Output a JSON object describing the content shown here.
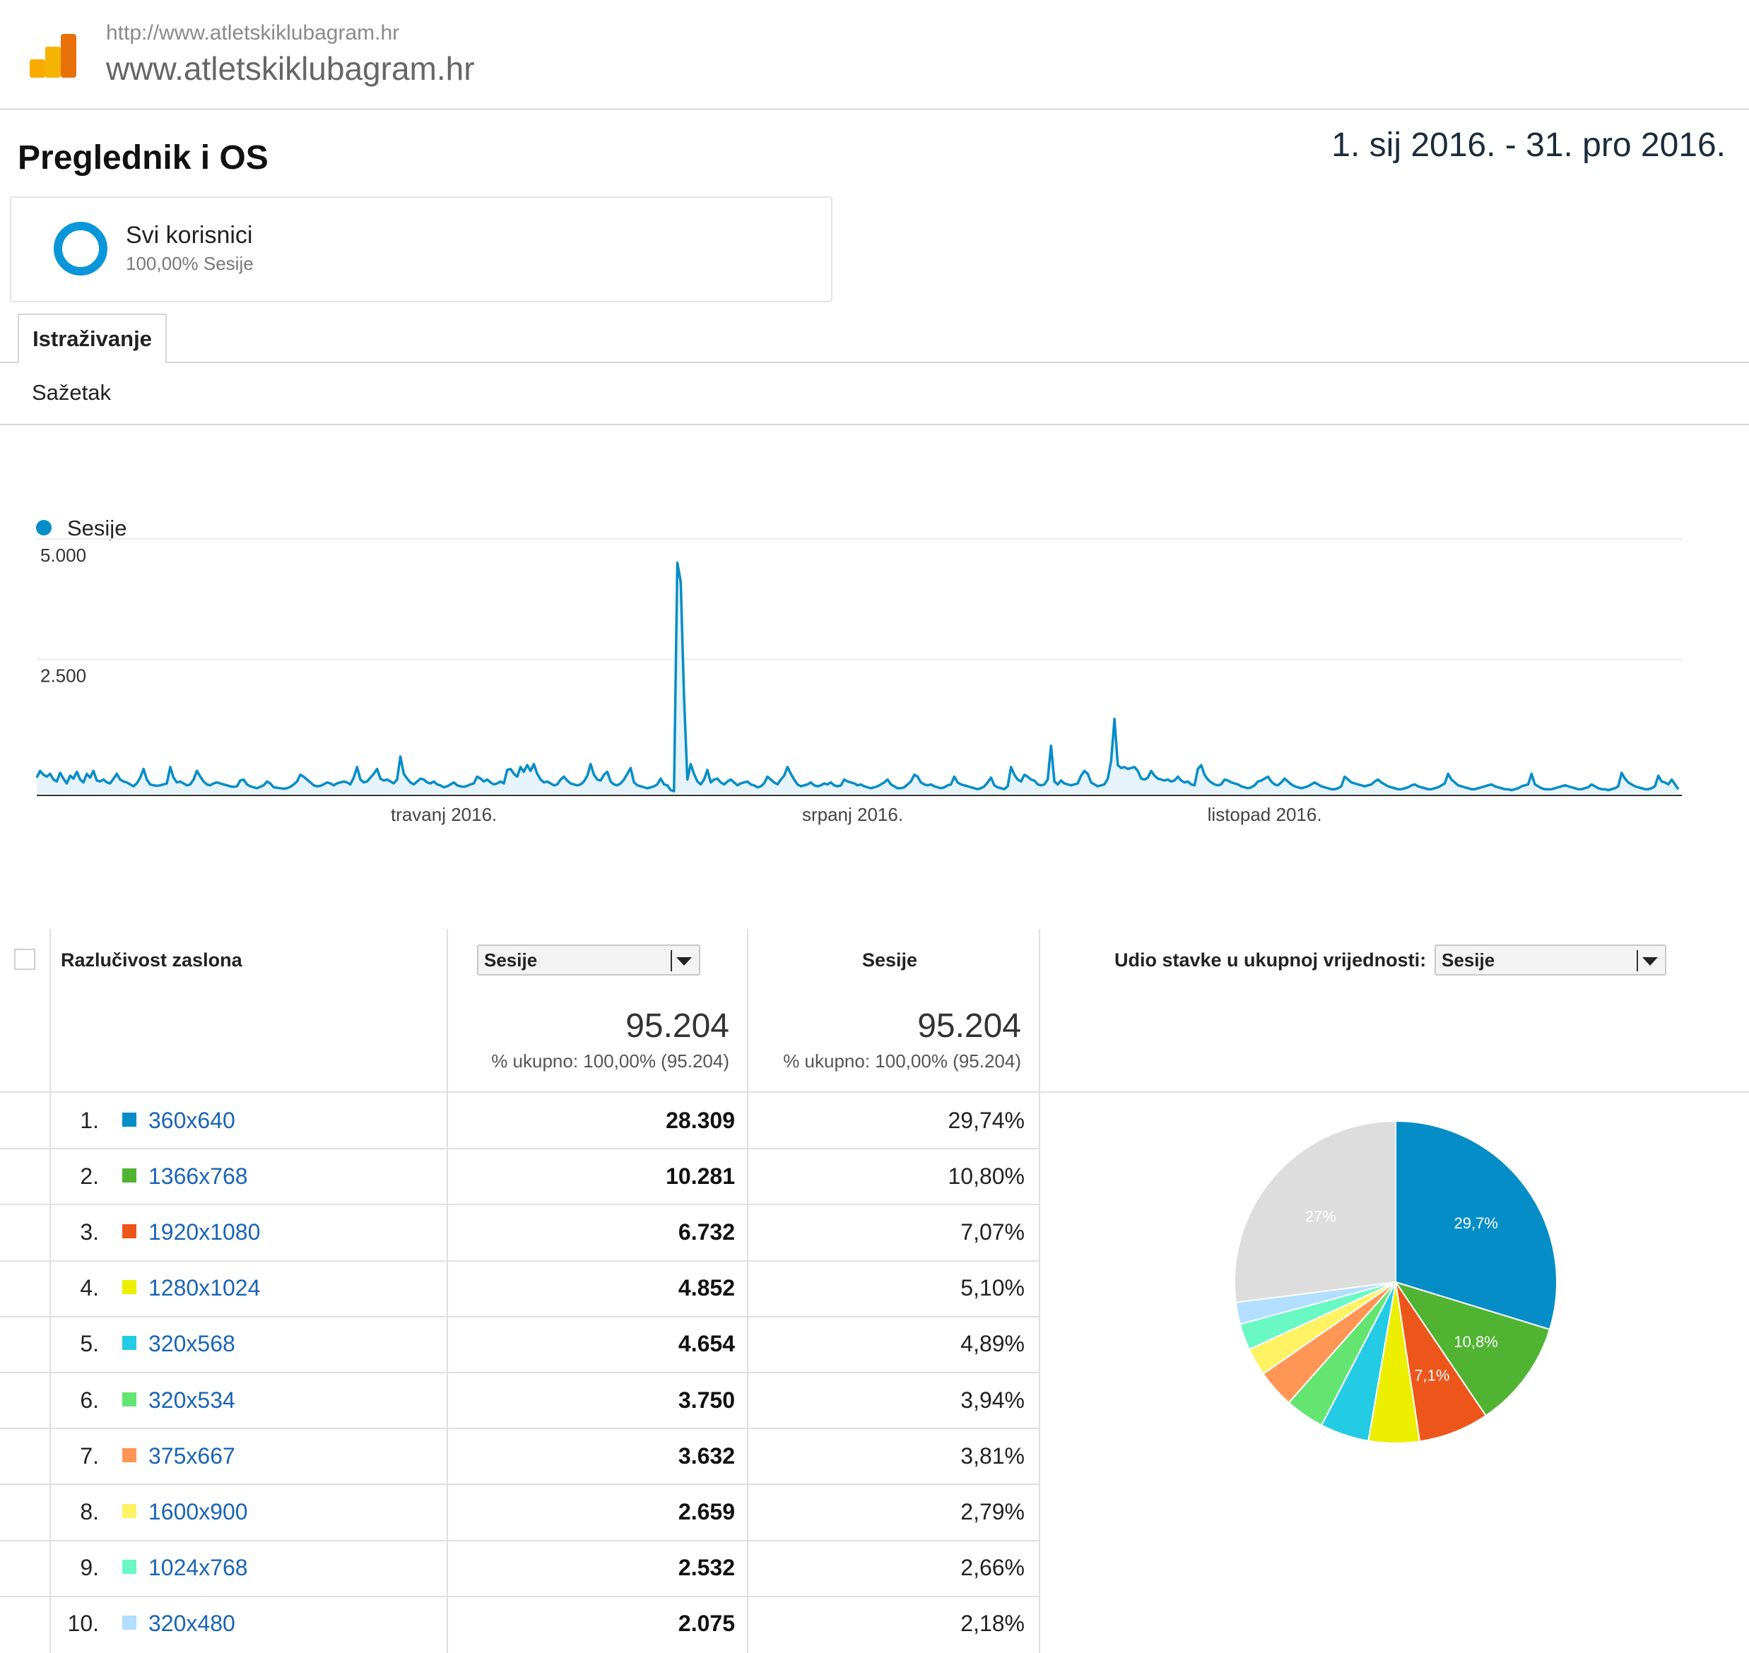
{
  "header": {
    "site_url": "http://www.atletskiklubagram.hr",
    "site_name": "www.atletskiklubagram.hr",
    "logo_icon": "analytics-bars-icon"
  },
  "report": {
    "title": "Preglednik i OS",
    "date_range": "1. sij 2016. - 31. pro 2016."
  },
  "segment": {
    "name": "Svi korisnici",
    "share": "100,00% Sesije",
    "ring_color": "#0a96d8"
  },
  "tabs": {
    "active": "Istraživanje",
    "sublink": "Sažetak"
  },
  "chart_data": {
    "type": "line",
    "legend": [
      "Sesije"
    ],
    "series": [
      {
        "name": "Sesije",
        "color": "#058dc7",
        "values": [
          340,
          480,
          400,
          360,
          420,
          300,
          260,
          440,
          320,
          220,
          380,
          320,
          460,
          300,
          240,
          420,
          340,
          480,
          280,
          260,
          300,
          240,
          220,
          320,
          420,
          300,
          260,
          240,
          200,
          160,
          220,
          340,
          520,
          300,
          200,
          180,
          170,
          180,
          200,
          220,
          560,
          340,
          240,
          260,
          220,
          180,
          200,
          300,
          480,
          360,
          260,
          200,
          180,
          220,
          240,
          220,
          200,
          180,
          160,
          150,
          160,
          280,
          300,
          200,
          160,
          140,
          120,
          150,
          180,
          260,
          220,
          140,
          130,
          120,
          110,
          120,
          150,
          200,
          260,
          400,
          360,
          300,
          240,
          180,
          160,
          170,
          200,
          240,
          220,
          180,
          220,
          240,
          260,
          240,
          200,
          340,
          560,
          300,
          240,
          260,
          340,
          420,
          520,
          320,
          280,
          300,
          260,
          220,
          300,
          780,
          420,
          320,
          240,
          200,
          260,
          320,
          300,
          240,
          220,
          260,
          200,
          180,
          140,
          160,
          200,
          240,
          180,
          160,
          150,
          170,
          200,
          220,
          360,
          320,
          260,
          300,
          240,
          200,
          220,
          260,
          220,
          500,
          520,
          420,
          360,
          560,
          460,
          600,
          480,
          620,
          420,
          300,
          240,
          260,
          220,
          180,
          200,
          300,
          360,
          280,
          220,
          200,
          180,
          200,
          260,
          380,
          620,
          400,
          300,
          280,
          400,
          460,
          260,
          200,
          180,
          220,
          300,
          420,
          540,
          240,
          180,
          160,
          140,
          120,
          140,
          160,
          200,
          320,
          200,
          180,
          80,
          60,
          4800,
          4400,
          2000,
          300,
          620,
          420,
          260,
          200,
          300,
          500,
          240,
          300,
          320,
          240,
          200,
          260,
          300,
          240,
          180,
          220,
          240,
          260,
          200,
          180,
          140,
          160,
          220,
          360,
          300,
          240,
          200,
          300,
          380,
          560,
          420,
          300,
          200,
          160,
          180,
          200,
          240,
          180,
          160,
          180,
          220,
          200,
          240,
          180,
          160,
          180,
          300,
          260,
          240,
          220,
          180,
          200,
          160,
          140,
          120,
          140,
          160,
          200,
          240,
          300,
          200,
          160,
          120,
          120,
          140,
          200,
          260,
          400,
          360,
          240,
          200,
          180,
          200,
          160,
          140,
          120,
          140,
          180,
          200,
          360,
          240,
          200,
          180,
          160,
          140,
          120,
          100,
          120,
          160,
          240,
          340,
          180,
          140,
          120,
          100,
          160,
          560,
          400,
          300,
          260,
          400,
          360,
          300,
          280,
          200,
          180,
          200,
          300,
          1000,
          260,
          200,
          280,
          220,
          200,
          180,
          200,
          220,
          380,
          480,
          420,
          240,
          200,
          160,
          180,
          200,
          320,
          680,
          1560,
          600,
          540,
          560,
          520,
          540,
          560,
          480,
          320,
          300,
          340,
          480,
          380,
          320,
          300,
          280,
          300,
          260,
          280,
          360,
          280,
          240,
          260,
          200,
          180,
          520,
          600,
          400,
          300,
          240,
          200,
          180,
          200,
          300,
          280,
          240,
          220,
          200,
          160,
          140,
          120,
          140,
          180,
          260,
          280,
          320,
          360,
          260,
          200,
          180,
          240,
          320,
          260,
          200,
          160,
          140,
          120,
          140,
          160,
          200,
          240,
          200,
          160,
          140,
          120,
          100,
          100,
          120,
          160,
          360,
          300,
          240,
          220,
          200,
          180,
          160,
          180,
          200,
          260,
          300,
          240,
          200,
          160,
          140,
          120,
          100,
          100,
          120,
          140,
          180,
          200,
          160,
          140,
          120,
          100,
          100,
          120,
          140,
          180,
          220,
          420,
          300,
          240,
          180,
          160,
          140,
          120,
          100,
          100,
          120,
          140,
          160,
          180,
          200,
          160,
          140,
          120,
          100,
          100,
          80,
          100,
          120,
          160,
          180,
          200,
          420,
          200,
          160,
          120,
          100,
          100,
          100,
          120,
          140,
          160,
          180,
          160,
          140,
          120,
          100,
          100,
          120,
          140,
          200,
          160,
          120,
          100,
          100,
          80,
          100,
          120,
          160,
          440,
          320,
          240,
          200,
          160,
          140,
          120,
          100,
          100,
          120,
          160,
          380,
          260,
          240,
          200,
          300,
          200,
          100
        ]
      }
    ],
    "yticks": [
      "5.000",
      "2.500"
    ],
    "ylim": [
      0,
      5000
    ],
    "xticks": [
      "travanj 2016.",
      "srpanj 2016.",
      "listopad 2016."
    ],
    "x_range": [
      "1. sij 2016.",
      "31. pro 2016."
    ],
    "grid": true
  },
  "table": {
    "col_dimension": "Razlučivost zaslona",
    "col_metric_dropdown": "Sesije",
    "col_metric": "Sesije",
    "col_share_label": "Udio stavke u ukupnoj vrijednosti:",
    "col_share_dropdown": "Sesije",
    "total_value": "95.204",
    "total_sub": "% ukupno: 100,00% (95.204)",
    "total_value_2": "95.204",
    "total_sub_2": "% ukupno: 100,00% (95.204)",
    "rows": [
      {
        "rank": "1.",
        "res": "360x640",
        "value": "28.309",
        "pct": "29,74%",
        "color": "#058dc7"
      },
      {
        "rank": "2.",
        "res": "1366x768",
        "value": "10.281",
        "pct": "10,80%",
        "color": "#50b432"
      },
      {
        "rank": "3.",
        "res": "1920x1080",
        "value": "6.732",
        "pct": "7,07%",
        "color": "#ed561b"
      },
      {
        "rank": "4.",
        "res": "1280x1024",
        "value": "4.852",
        "pct": "5,10%",
        "color": "#edef00"
      },
      {
        "rank": "5.",
        "res": "320x568",
        "value": "4.654",
        "pct": "4,89%",
        "color": "#24cbe5"
      },
      {
        "rank": "6.",
        "res": "320x534",
        "value": "3.750",
        "pct": "3,94%",
        "color": "#64e572"
      },
      {
        "rank": "7.",
        "res": "375x667",
        "value": "3.632",
        "pct": "3,81%",
        "color": "#ff9655"
      },
      {
        "rank": "8.",
        "res": "1600x900",
        "value": "2.659",
        "pct": "2,79%",
        "color": "#fff263"
      },
      {
        "rank": "9.",
        "res": "1024x768",
        "value": "2.532",
        "pct": "2,66%",
        "color": "#6af9c4"
      },
      {
        "rank": "10.",
        "res": "320x480",
        "value": "2.075",
        "pct": "2,18%",
        "color": "#b2deff"
      }
    ]
  },
  "pie_chart": {
    "type": "pie",
    "slices": [
      {
        "label": "29,7%",
        "value": 29.74,
        "color": "#058dc7"
      },
      {
        "label": "10,8%",
        "value": 10.8,
        "color": "#50b432"
      },
      {
        "label": "7,1%",
        "value": 7.07,
        "color": "#ed561b"
      },
      {
        "label": "",
        "value": 5.1,
        "color": "#edef00"
      },
      {
        "label": "",
        "value": 4.89,
        "color": "#24cbe5"
      },
      {
        "label": "",
        "value": 3.94,
        "color": "#64e572"
      },
      {
        "label": "",
        "value": 3.81,
        "color": "#ff9655"
      },
      {
        "label": "",
        "value": 2.79,
        "color": "#fff263"
      },
      {
        "label": "",
        "value": 2.66,
        "color": "#6af9c4"
      },
      {
        "label": "",
        "value": 2.18,
        "color": "#b2deff"
      },
      {
        "label": "27%",
        "value": 27.01,
        "color": "#dddddd"
      }
    ]
  }
}
